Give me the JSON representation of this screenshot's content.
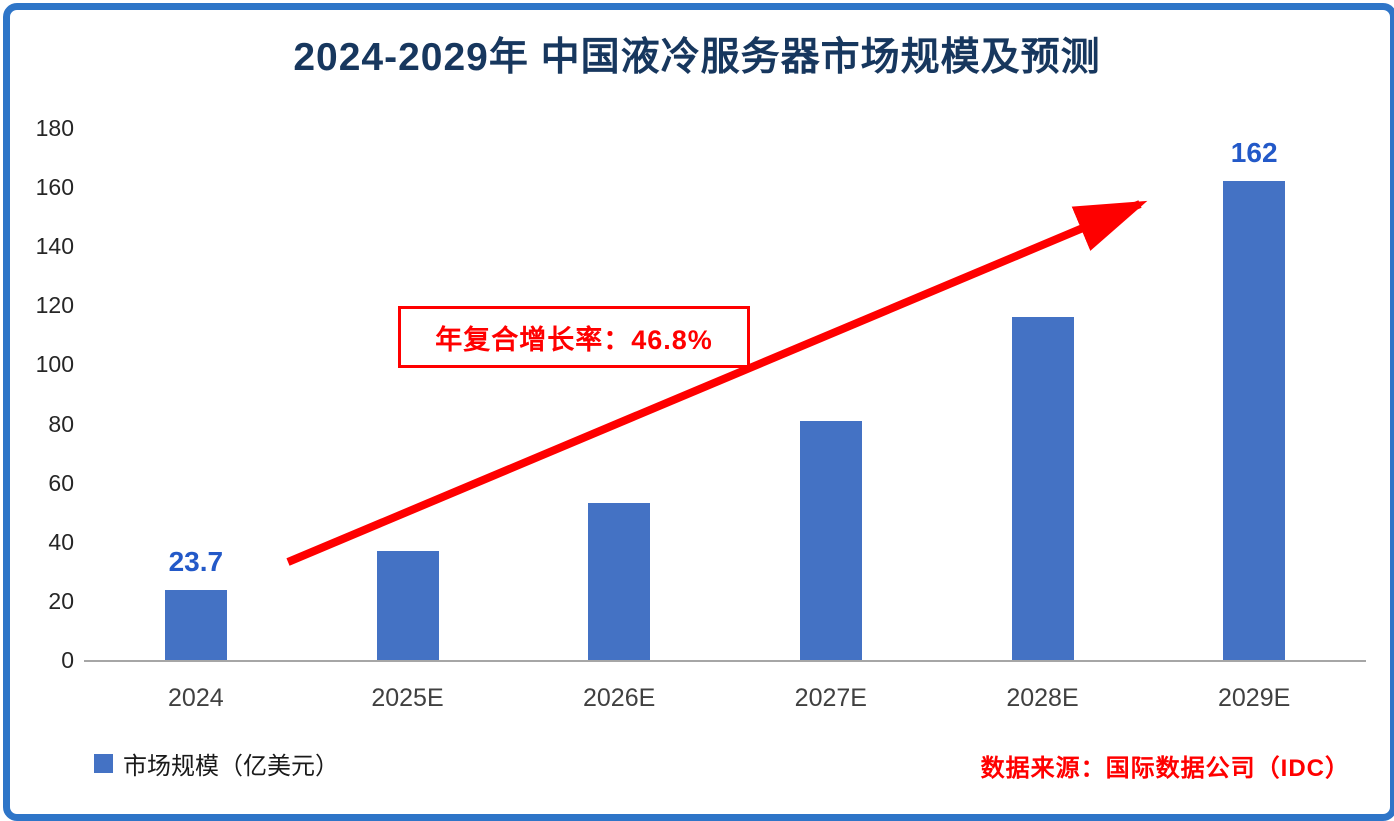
{
  "frame": {
    "border_color": "#2E75C8"
  },
  "title": {
    "text": "2024-2029年 中国液冷服务器市场规模及预测",
    "color": "#17375E"
  },
  "chart_data": {
    "type": "bar",
    "title": "2024-2029年 中国液冷服务器市场规模及预测",
    "categories": [
      "2024",
      "2025E",
      "2026E",
      "2027E",
      "2028E",
      "2029E"
    ],
    "values": [
      23.7,
      37,
      53,
      81,
      116,
      162
    ],
    "bar_labels": [
      "23.7",
      "",
      "",
      "",
      "",
      "162"
    ],
    "xlabel": "",
    "ylabel": "",
    "ylim": [
      0,
      180
    ],
    "yticks": [
      0,
      20,
      40,
      60,
      80,
      100,
      120,
      140,
      160,
      180
    ],
    "grid": false,
    "legend_position": "bottom-left",
    "bar_color": "#4472C4",
    "value_label_color": "#2359C8",
    "annotation": {
      "text": "年复合增长率：46.8%",
      "color": "#FF0000"
    },
    "trend_arrow_color": "#FE0000"
  },
  "legend": {
    "swatch_color": "#4472C4",
    "label": "市场规模（亿美元）"
  },
  "source": {
    "text": "数据来源：国际数据公司（IDC）",
    "color": "#FF0000"
  }
}
